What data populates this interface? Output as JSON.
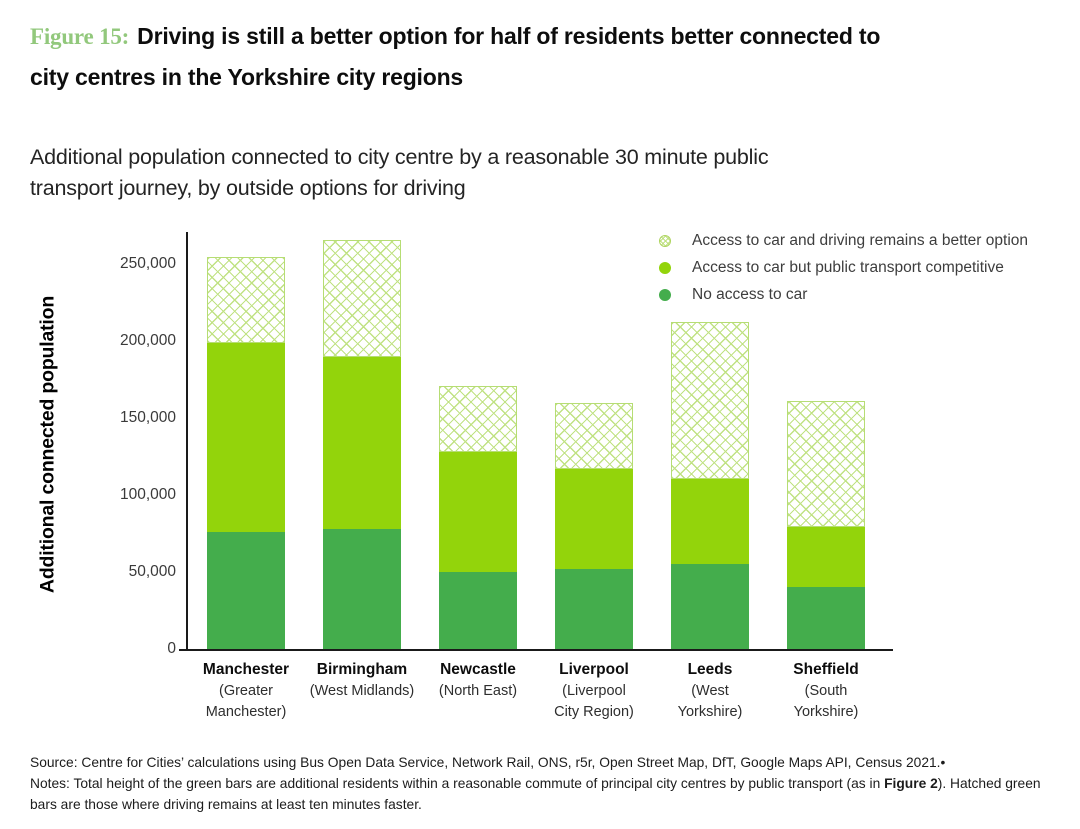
{
  "figure": {
    "label": "Figure 15:",
    "title_lines": [
      "Driving is still a better option for half of residents better connected to",
      "city centres in the Yorkshire city regions"
    ]
  },
  "subtitle_lines": [
    "Additional population connected to city centre by a reasonable 30 minute public",
    "transport journey, by outside options for driving"
  ],
  "chart_data": {
    "type": "bar",
    "stacked": true,
    "ylabel": "Additional connected population",
    "xlabel": "",
    "ylim": [
      0,
      250000
    ],
    "grid": false,
    "legend_position": "top-right",
    "yticks": [
      {
        "value": 0,
        "label": "0"
      },
      {
        "value": 50000,
        "label": "50,000"
      },
      {
        "value": 100000,
        "label": "100,000"
      },
      {
        "value": 150000,
        "label": "150,000"
      },
      {
        "value": 200000,
        "label": "200,000"
      },
      {
        "value": 250000,
        "label": "250,000"
      }
    ],
    "categories": [
      {
        "city": "Manchester",
        "region_lines": [
          "(Greater",
          "Manchester)"
        ]
      },
      {
        "city": "Birmingham",
        "region_lines": [
          "(West Midlands)"
        ]
      },
      {
        "city": "Newcastle",
        "region_lines": [
          "(North East)"
        ]
      },
      {
        "city": "Liverpool",
        "region_lines": [
          "(Liverpool",
          "City Region)"
        ]
      },
      {
        "city": "Leeds",
        "region_lines": [
          "(West",
          "Yorkshire)"
        ]
      },
      {
        "city": "Sheffield",
        "region_lines": [
          "(South",
          "Yorkshire)"
        ]
      }
    ],
    "series": [
      {
        "name": "No access to car",
        "color": "#44ad4c",
        "style": "solid",
        "values": [
          76000,
          78000,
          50000,
          52000,
          55000,
          40000
        ]
      },
      {
        "name": "Access to car but public transport competitive",
        "color": "#93d40b",
        "style": "solid",
        "values": [
          123000,
          112000,
          78000,
          65000,
          55000,
          39000
        ]
      },
      {
        "name": "Access to car and driving remains a better option",
        "color": "#c0e283",
        "style": "hatched",
        "values": [
          56000,
          76000,
          43000,
          43000,
          102000,
          82000
        ]
      }
    ]
  },
  "legend": {
    "items": [
      {
        "label": "Access to car and driving remains a better option",
        "swatch": "hatch"
      },
      {
        "label": "Access to car but public transport competitive",
        "swatch": "light"
      },
      {
        "label": "No access to car",
        "swatch": "dark"
      }
    ]
  },
  "footer": {
    "source": "Source: Centre for Cities’ calculations using Bus Open Data Service, Network Rail, ONS, r5r, Open Street Map, DfT, Google Maps API, Census 2021.•",
    "notes_prefix": "Notes: Total height of the green bars are additional residents within a reasonable commute of principal city centres by public transport (as in ",
    "notes_bold": "Figure 2",
    "notes_suffix": "). Hatched green bars are those where driving remains at least ten minutes faster."
  },
  "colors": {
    "figure_label_green": "#92c87c",
    "bar_dark_green": "#44ad4c",
    "bar_light_green": "#93d40b",
    "hatch_line_green": "#c0e283",
    "axis_black": "#1a1a1a"
  }
}
